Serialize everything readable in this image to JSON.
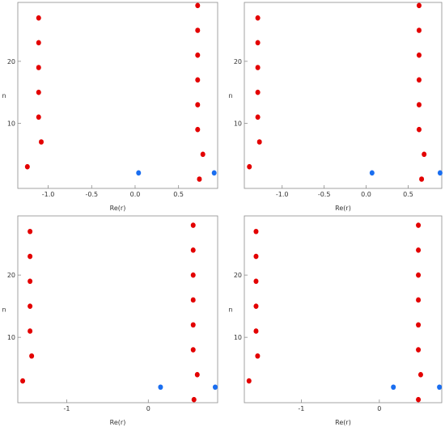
{
  "chart_data": [
    {
      "type": "scatter",
      "title": "",
      "xlabel": "Re(r)",
      "ylabel": "n",
      "xlim": [
        -1.35,
        0.95
      ],
      "ylim": [
        -0.5,
        29.5
      ],
      "xticks": [
        -1.0,
        -0.5,
        0.0,
        0.5
      ],
      "xtick_labels": [
        "-1.0",
        "-0.5",
        "0.0",
        "0.5"
      ],
      "yticks": [
        10,
        20
      ],
      "ytick_labels": [
        "10",
        "20"
      ],
      "grid": false,
      "colors": {
        "red": "#e30000",
        "blue": "#1a6ef0"
      },
      "series": [
        {
          "color": "red",
          "points": [
            [
              -1.24,
              3
            ],
            [
              -1.08,
              7
            ],
            [
              -1.11,
              11
            ],
            [
              -1.11,
              15
            ],
            [
              -1.11,
              19
            ],
            [
              -1.11,
              23
            ],
            [
              -1.11,
              27
            ],
            [
              0.74,
              1
            ],
            [
              0.78,
              5
            ],
            [
              0.72,
              9
            ],
            [
              0.72,
              13
            ],
            [
              0.72,
              17
            ],
            [
              0.72,
              21
            ],
            [
              0.72,
              25
            ],
            [
              0.72,
              29
            ]
          ]
        },
        {
          "color": "blue",
          "points": [
            [
              0.04,
              2
            ],
            [
              0.91,
              2
            ]
          ]
        }
      ]
    },
    {
      "type": "scatter",
      "title": "",
      "xlabel": "Re(r)",
      "ylabel": "n",
      "xlim": [
        -1.45,
        0.9
      ],
      "ylim": [
        -0.5,
        29.5
      ],
      "xticks": [
        -1.0,
        -0.5,
        0.0,
        0.5
      ],
      "xtick_labels": [
        "-1.0",
        "-0.5",
        "0.0",
        "0.5"
      ],
      "yticks": [
        10,
        20
      ],
      "ytick_labels": [
        "10",
        "20"
      ],
      "grid": false,
      "colors": {
        "red": "#e30000",
        "blue": "#1a6ef0"
      },
      "series": [
        {
          "color": "red",
          "points": [
            [
              -1.39,
              3
            ],
            [
              -1.27,
              7
            ],
            [
              -1.29,
              11
            ],
            [
              -1.29,
              15
            ],
            [
              -1.29,
              19
            ],
            [
              -1.29,
              23
            ],
            [
              -1.29,
              27
            ],
            [
              0.66,
              1
            ],
            [
              0.69,
              5
            ],
            [
              0.63,
              9
            ],
            [
              0.63,
              13
            ],
            [
              0.63,
              17
            ],
            [
              0.63,
              21
            ],
            [
              0.63,
              25
            ],
            [
              0.63,
              29
            ]
          ]
        },
        {
          "color": "blue",
          "points": [
            [
              0.07,
              2
            ],
            [
              0.88,
              2
            ]
          ]
        }
      ]
    },
    {
      "type": "scatter",
      "title": "",
      "xlabel": "Re(r)",
      "ylabel": "n",
      "xlim": [
        -1.6,
        0.85
      ],
      "ylim": [
        -0.5,
        29.5
      ],
      "xticks": [
        -1,
        0
      ],
      "xtick_labels": [
        "-1",
        "0"
      ],
      "yticks": [
        10,
        20
      ],
      "ytick_labels": [
        "10",
        "20"
      ],
      "grid": false,
      "colors": {
        "red": "#e30000",
        "blue": "#1a6ef0"
      },
      "series": [
        {
          "color": "red",
          "points": [
            [
              -1.54,
              3
            ],
            [
              -1.43,
              7
            ],
            [
              -1.45,
              11
            ],
            [
              -1.45,
              15
            ],
            [
              -1.45,
              19
            ],
            [
              -1.45,
              23
            ],
            [
              -1.45,
              27
            ],
            [
              0.56,
              0
            ],
            [
              0.6,
              4
            ],
            [
              0.55,
              8
            ],
            [
              0.55,
              12
            ],
            [
              0.55,
              16
            ],
            [
              0.55,
              20
            ],
            [
              0.55,
              24
            ],
            [
              0.55,
              28
            ]
          ]
        },
        {
          "color": "blue",
          "points": [
            [
              0.15,
              2
            ],
            [
              0.82,
              2
            ]
          ]
        }
      ]
    },
    {
      "type": "scatter",
      "title": "",
      "xlabel": "Re(r)",
      "ylabel": "n",
      "xlim": [
        -1.73,
        0.8
      ],
      "ylim": [
        -0.5,
        29.5
      ],
      "xticks": [
        -1,
        0
      ],
      "xtick_labels": [
        "-1",
        "0"
      ],
      "yticks": [
        10,
        20
      ],
      "ytick_labels": [
        "10",
        "20"
      ],
      "grid": false,
      "colors": {
        "red": "#e30000",
        "blue": "#1a6ef0"
      },
      "series": [
        {
          "color": "red",
          "points": [
            [
              -1.67,
              3
            ],
            [
              -1.56,
              7
            ],
            [
              -1.58,
              11
            ],
            [
              -1.58,
              15
            ],
            [
              -1.58,
              19
            ],
            [
              -1.58,
              23
            ],
            [
              -1.58,
              27
            ],
            [
              0.5,
              0
            ],
            [
              0.53,
              4
            ],
            [
              0.5,
              8
            ],
            [
              0.5,
              12
            ],
            [
              0.5,
              16
            ],
            [
              0.5,
              20
            ],
            [
              0.5,
              24
            ],
            [
              0.5,
              28
            ]
          ]
        },
        {
          "color": "blue",
          "points": [
            [
              0.18,
              2
            ],
            [
              0.77,
              2
            ]
          ]
        }
      ]
    }
  ]
}
